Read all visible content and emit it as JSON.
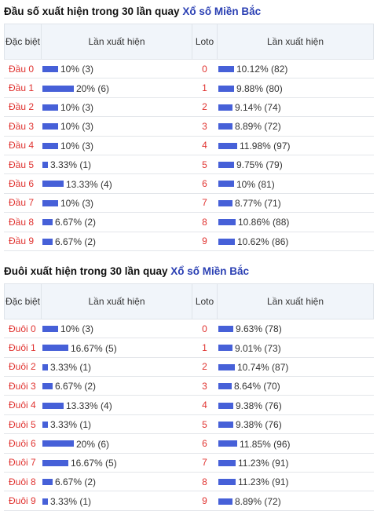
{
  "sections": [
    {
      "title": "Đầu số xuất hiện trong 30 lần quay",
      "title_link": "Xổ số Miền Bắc",
      "headers": [
        "Đặc biệt",
        "Lần xuất hiện",
        "Loto",
        "Lần xuất hiện"
      ],
      "rows": [
        {
          "label": "Đầu 0",
          "dac_biet_text": "10% (3)",
          "dac_biet_pct": 10,
          "loto": "0",
          "loto_text": "10.12% (82)",
          "loto_pct": 10.12
        },
        {
          "label": "Đầu 1",
          "dac_biet_text": "20% (6)",
          "dac_biet_pct": 20,
          "loto": "1",
          "loto_text": "9.88% (80)",
          "loto_pct": 9.88
        },
        {
          "label": "Đầu 2",
          "dac_biet_text": "10% (3)",
          "dac_biet_pct": 10,
          "loto": "2",
          "loto_text": "9.14% (74)",
          "loto_pct": 9.14
        },
        {
          "label": "Đầu 3",
          "dac_biet_text": "10% (3)",
          "dac_biet_pct": 10,
          "loto": "3",
          "loto_text": "8.89% (72)",
          "loto_pct": 8.89
        },
        {
          "label": "Đầu 4",
          "dac_biet_text": "10% (3)",
          "dac_biet_pct": 10,
          "loto": "4",
          "loto_text": "11.98% (97)",
          "loto_pct": 11.98
        },
        {
          "label": "Đầu 5",
          "dac_biet_text": "3.33% (1)",
          "dac_biet_pct": 3.33,
          "loto": "5",
          "loto_text": "9.75% (79)",
          "loto_pct": 9.75
        },
        {
          "label": "Đầu 6",
          "dac_biet_text": "13.33% (4)",
          "dac_biet_pct": 13.33,
          "loto": "6",
          "loto_text": "10% (81)",
          "loto_pct": 10
        },
        {
          "label": "Đầu 7",
          "dac_biet_text": "10% (3)",
          "dac_biet_pct": 10,
          "loto": "7",
          "loto_text": "8.77% (71)",
          "loto_pct": 8.77
        },
        {
          "label": "Đầu 8",
          "dac_biet_text": "6.67% (2)",
          "dac_biet_pct": 6.67,
          "loto": "8",
          "loto_text": "10.86% (88)",
          "loto_pct": 10.86
        },
        {
          "label": "Đầu 9",
          "dac_biet_text": "6.67% (2)",
          "dac_biet_pct": 6.67,
          "loto": "9",
          "loto_text": "10.62% (86)",
          "loto_pct": 10.62
        }
      ]
    },
    {
      "title": "Đuôi xuất hiện trong 30 lần quay",
      "title_link": "Xổ số Miền Bắc",
      "headers": [
        "Đặc biệt",
        "Lần xuất hiện",
        "Loto",
        "Lần xuất hiện"
      ],
      "rows": [
        {
          "label": "Đuôi 0",
          "dac_biet_text": "10% (3)",
          "dac_biet_pct": 10,
          "loto": "0",
          "loto_text": "9.63% (78)",
          "loto_pct": 9.63
        },
        {
          "label": "Đuôi 1",
          "dac_biet_text": "16.67% (5)",
          "dac_biet_pct": 16.67,
          "loto": "1",
          "loto_text": "9.01% (73)",
          "loto_pct": 9.01
        },
        {
          "label": "Đuôi 2",
          "dac_biet_text": "3.33% (1)",
          "dac_biet_pct": 3.33,
          "loto": "2",
          "loto_text": "10.74% (87)",
          "loto_pct": 10.74
        },
        {
          "label": "Đuôi 3",
          "dac_biet_text": "6.67% (2)",
          "dac_biet_pct": 6.67,
          "loto": "3",
          "loto_text": "8.64% (70)",
          "loto_pct": 8.64
        },
        {
          "label": "Đuôi 4",
          "dac_biet_text": "13.33% (4)",
          "dac_biet_pct": 13.33,
          "loto": "4",
          "loto_text": "9.38% (76)",
          "loto_pct": 9.38
        },
        {
          "label": "Đuôi 5",
          "dac_biet_text": "3.33% (1)",
          "dac_biet_pct": 3.33,
          "loto": "5",
          "loto_text": "9.38% (76)",
          "loto_pct": 9.38
        },
        {
          "label": "Đuôi 6",
          "dac_biet_text": "20% (6)",
          "dac_biet_pct": 20,
          "loto": "6",
          "loto_text": "11.85% (96)",
          "loto_pct": 11.85
        },
        {
          "label": "Đuôi 7",
          "dac_biet_text": "16.67% (5)",
          "dac_biet_pct": 16.67,
          "loto": "7",
          "loto_text": "11.23% (91)",
          "loto_pct": 11.23
        },
        {
          "label": "Đuôi 8",
          "dac_biet_text": "6.67% (2)",
          "dac_biet_pct": 6.67,
          "loto": "8",
          "loto_text": "11.23% (91)",
          "loto_pct": 11.23
        },
        {
          "label": "Đuôi 9",
          "dac_biet_text": "3.33% (1)",
          "dac_biet_pct": 3.33,
          "loto": "9",
          "loto_text": "8.89% (72)",
          "loto_pct": 8.89
        }
      ]
    }
  ],
  "colors": {
    "bar": "#4660d8",
    "label": "#e0322f",
    "link": "#2a3fb3",
    "header_bg": "#f1f5fa"
  }
}
